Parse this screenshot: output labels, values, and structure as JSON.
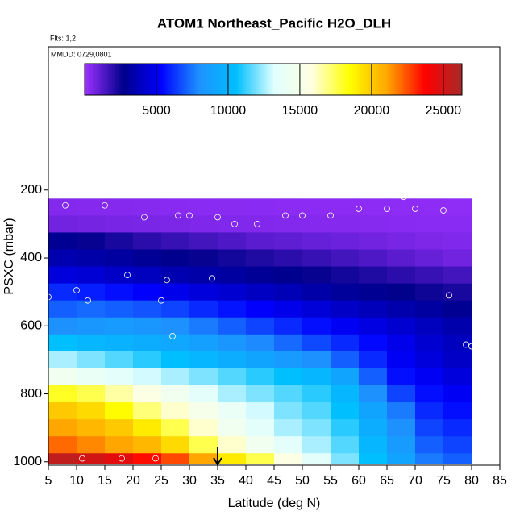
{
  "chart_data": {
    "type": "heatmap",
    "title": "ATOM1 Northeast_Pacific H2O_DLH",
    "subtitle": "Flts: 1,2",
    "annotation": "MMDD: 0729,0801",
    "x_label": "Latitude (deg N)",
    "y_label": "PSXC (mbar)",
    "xlim": [
      5,
      85
    ],
    "xticks": [
      5,
      10,
      15,
      20,
      25,
      30,
      35,
      40,
      45,
      50,
      55,
      60,
      65,
      70,
      75,
      80,
      85
    ],
    "ylim": [
      1010,
      -222
    ],
    "yticks": [
      200,
      400,
      600,
      800,
      1000
    ],
    "x_edges": [
      5,
      10,
      15,
      20,
      25,
      30,
      35,
      40,
      45,
      50,
      55,
      60,
      65,
      70,
      75,
      80
    ],
    "y_edges": [
      225,
      275,
      325,
      375,
      425,
      475,
      525,
      575,
      625,
      675,
      725,
      775,
      825,
      875,
      925,
      975,
      1005
    ],
    "values": [
      [
        400,
        380,
        360,
        340,
        320,
        300,
        290,
        280,
        270,
        260,
        250,
        240,
        230,
        220,
        210
      ],
      [
        700,
        650,
        600,
        560,
        520,
        480,
        450,
        420,
        400,
        380,
        360,
        340,
        320,
        300,
        280
      ],
      [
        2800,
        2500,
        2200,
        1900,
        1700,
        1500,
        1300,
        1100,
        1000,
        900,
        800,
        700,
        600,
        500,
        450
      ],
      [
        3500,
        3300,
        3100,
        2900,
        2700,
        2500,
        2300,
        2100,
        1900,
        1700,
        1500,
        1300,
        1100,
        900,
        700
      ],
      [
        4500,
        4300,
        4000,
        3800,
        3500,
        3300,
        3100,
        2900,
        2700,
        2500,
        2300,
        2100,
        1900,
        1700,
        1500
      ],
      [
        6000,
        5800,
        5500,
        5200,
        4800,
        4500,
        4200,
        3900,
        3600,
        3300,
        3000,
        2800,
        2600,
        2400,
        2200
      ],
      [
        7000,
        7200,
        7000,
        6800,
        6500,
        6000,
        5600,
        5200,
        4800,
        4400,
        4000,
        3700,
        3400,
        3100,
        2800
      ],
      [
        8000,
        8200,
        8500,
        8300,
        8000,
        7500,
        7000,
        6500,
        6000,
        5500,
        5000,
        4600,
        4200,
        3800,
        3400
      ],
      [
        10500,
        10000,
        9800,
        9500,
        9200,
        8800,
        8300,
        7800,
        7200,
        6600,
        6000,
        5400,
        4800,
        4200,
        3800
      ],
      [
        12500,
        12000,
        11500,
        11000,
        10500,
        10000,
        9500,
        9000,
        8500,
        8000,
        7000,
        6000,
        5000,
        4500,
        4000
      ],
      [
        14500,
        14000,
        13500,
        13000,
        12500,
        12000,
        11500,
        11000,
        10500,
        10000,
        9000,
        7000,
        5500,
        5000,
        4500
      ],
      [
        18000,
        17500,
        16500,
        15500,
        14500,
        13500,
        12500,
        12000,
        11500,
        11000,
        10000,
        8000,
        6500,
        5500,
        5000
      ],
      [
        20000,
        19500,
        18500,
        17000,
        16000,
        15000,
        14000,
        13000,
        12000,
        11500,
        10500,
        9000,
        7500,
        6000,
        5500
      ],
      [
        21000,
        20500,
        20000,
        19000,
        17500,
        16000,
        14500,
        13500,
        12500,
        12000,
        11000,
        9500,
        8000,
        6500,
        6000
      ],
      [
        22000,
        21500,
        21000,
        20500,
        19500,
        17500,
        16000,
        14500,
        13500,
        12500,
        11500,
        10000,
        8500,
        7000,
        6500
      ],
      [
        25500,
        25000,
        24500,
        23500,
        22500,
        21000,
        19000,
        17500,
        15500,
        13500,
        12000,
        10500,
        9000,
        7500,
        7000
      ]
    ],
    "zlim": [
      0,
      26300
    ],
    "zticks": [
      5000,
      10000,
      15000,
      20000,
      25000
    ],
    "colors": [
      "#9b30ff",
      "#00008b",
      "#0000ff",
      "#1e90ff",
      "#00bfff",
      "#e0ffff",
      "#ffffe0",
      "#ffff00",
      "#ffa500",
      "#ff0000",
      "#a52a2a"
    ],
    "points": {
      "color": "#ffffff",
      "x": [
        8,
        15,
        22,
        28,
        30,
        35,
        38,
        42,
        47,
        50,
        55,
        60,
        65,
        68,
        70,
        75,
        79,
        19,
        26,
        34,
        10,
        12,
        25,
        27,
        80,
        5,
        11,
        18,
        24,
        76
      ],
      "y": [
        245,
        245,
        280,
        275,
        275,
        280,
        300,
        300,
        275,
        275,
        275,
        255,
        255,
        220,
        255,
        260,
        655,
        450,
        465,
        460,
        495,
        525,
        525,
        630,
        660,
        515,
        990,
        990,
        990,
        510
      ]
    },
    "arrow_x": 35
  }
}
